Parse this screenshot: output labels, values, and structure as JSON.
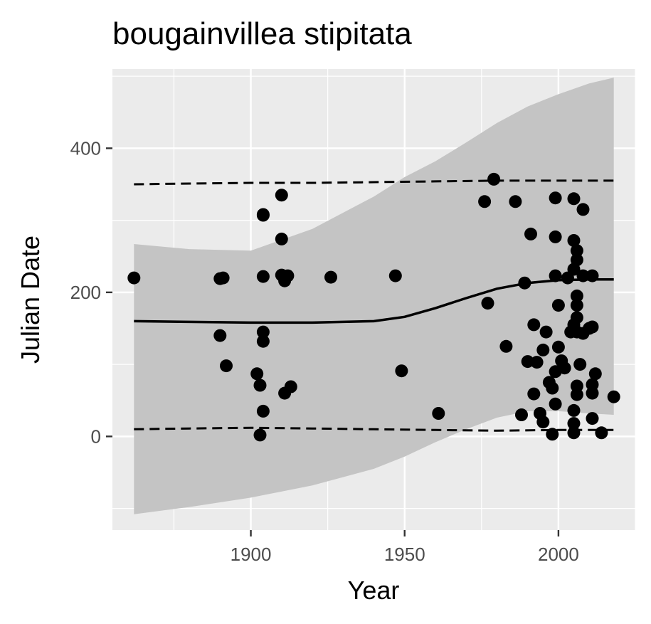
{
  "chart_data": {
    "type": "scatter",
    "title": "bougainvillea stipitata",
    "xlabel": "Year",
    "ylabel": "Julian Date",
    "xlim": [
      1855,
      2025
    ],
    "ylim": [
      -130,
      510
    ],
    "x_ticks": [
      1900,
      1950,
      2000
    ],
    "y_ticks": [
      0,
      200,
      400
    ],
    "x_minor": [
      1875,
      1925,
      1975,
      2025
    ],
    "y_minor": [
      -100,
      100,
      300,
      500
    ],
    "grid": true,
    "legend": "none",
    "colors": {
      "panel": "#ebebeb",
      "grid": "#ffffff",
      "points": "#000000",
      "ribbon": "#c4c4c4",
      "line": "#000000"
    },
    "points": [
      [
        1862,
        220
      ],
      [
        1890,
        140
      ],
      [
        1890,
        219
      ],
      [
        1891,
        220
      ],
      [
        1892,
        98
      ],
      [
        1902,
        87
      ],
      [
        1903,
        71
      ],
      [
        1903,
        2
      ],
      [
        1904,
        35
      ],
      [
        1904,
        132
      ],
      [
        1904,
        145
      ],
      [
        1904,
        222
      ],
      [
        1904,
        308
      ],
      [
        1904,
        307
      ],
      [
        1910,
        335
      ],
      [
        1910,
        274
      ],
      [
        1910,
        224
      ],
      [
        1911,
        60
      ],
      [
        1911,
        216
      ],
      [
        1912,
        223
      ],
      [
        1913,
        69
      ],
      [
        1926,
        221
      ],
      [
        1947,
        223
      ],
      [
        1949,
        91
      ],
      [
        1961,
        32
      ],
      [
        1976,
        326
      ],
      [
        1977,
        185
      ],
      [
        1979,
        357
      ],
      [
        1983,
        125
      ],
      [
        1986,
        326
      ],
      [
        1988,
        30
      ],
      [
        1989,
        213
      ],
      [
        1990,
        104
      ],
      [
        1991,
        281
      ],
      [
        1992,
        59
      ],
      [
        1992,
        155
      ],
      [
        1993,
        103
      ],
      [
        1994,
        32
      ],
      [
        1995,
        120
      ],
      [
        1995,
        20
      ],
      [
        1996,
        145
      ],
      [
        1997,
        75
      ],
      [
        1998,
        3
      ],
      [
        1998,
        67
      ],
      [
        1999,
        90
      ],
      [
        1999,
        45
      ],
      [
        1999,
        331
      ],
      [
        1999,
        277
      ],
      [
        1999,
        223
      ],
      [
        2000,
        182
      ],
      [
        2000,
        124
      ],
      [
        2001,
        105
      ],
      [
        2002,
        95
      ],
      [
        2003,
        220
      ],
      [
        2004,
        145
      ],
      [
        2005,
        330
      ],
      [
        2005,
        272
      ],
      [
        2005,
        232
      ],
      [
        2005,
        155
      ],
      [
        2005,
        36
      ],
      [
        2005,
        18
      ],
      [
        2005,
        5
      ],
      [
        2006,
        258
      ],
      [
        2006,
        245
      ],
      [
        2006,
        195
      ],
      [
        2006,
        182
      ],
      [
        2006,
        165
      ],
      [
        2006,
        145
      ],
      [
        2006,
        70
      ],
      [
        2006,
        58
      ],
      [
        2007,
        100
      ],
      [
        2008,
        315
      ],
      [
        2008,
        223
      ],
      [
        2008,
        143
      ],
      [
        2010,
        150
      ],
      [
        2011,
        72
      ],
      [
        2011,
        60
      ],
      [
        2011,
        25
      ],
      [
        2011,
        223
      ],
      [
        2011,
        152
      ],
      [
        2012,
        87
      ],
      [
        2014,
        5
      ],
      [
        2018,
        55
      ]
    ],
    "trend_line": {
      "x": [
        1862,
        1880,
        1900,
        1920,
        1940,
        1950,
        1960,
        1970,
        1980,
        1990,
        2000,
        2010,
        2018
      ],
      "y": [
        160,
        159,
        158,
        158,
        160,
        166,
        178,
        192,
        205,
        213,
        217,
        218,
        218
      ]
    },
    "ribbon": {
      "x": [
        1862,
        1880,
        1900,
        1920,
        1940,
        1950,
        1960,
        1970,
        1980,
        1990,
        2000,
        2010,
        2018
      ],
      "lower": [
        -108,
        -98,
        -85,
        -68,
        -45,
        -28,
        -8,
        10,
        26,
        35,
        35,
        32,
        30
      ],
      "upper": [
        267,
        260,
        258,
        288,
        333,
        360,
        382,
        408,
        435,
        458,
        475,
        490,
        498
      ]
    },
    "upper_quantile_line": {
      "x": [
        1862,
        1880,
        1900,
        1920,
        1940,
        1960,
        1980,
        2000,
        2018
      ],
      "y": [
        350,
        351,
        352,
        352,
        353,
        354,
        355,
        355,
        355
      ]
    },
    "lower_quantile_line": {
      "x": [
        1862,
        1880,
        1900,
        1920,
        1940,
        1960,
        1980,
        2000,
        2018
      ],
      "y": [
        10,
        11,
        12,
        11,
        10,
        9,
        8,
        9,
        9
      ]
    }
  }
}
